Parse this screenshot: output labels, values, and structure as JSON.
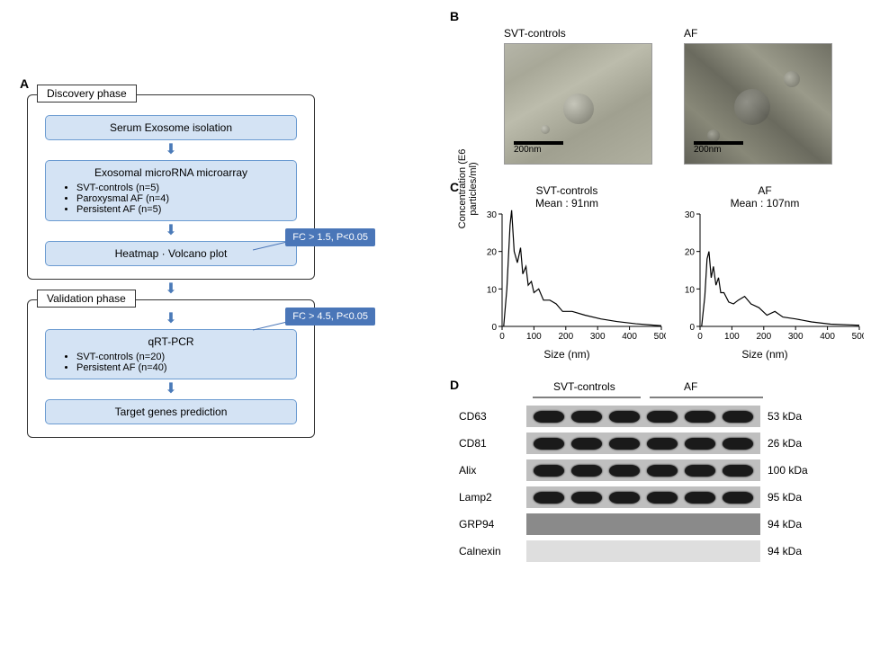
{
  "panels": {
    "A": "A",
    "B": "B",
    "C": "C",
    "D": "D"
  },
  "flowchart": {
    "discovery": {
      "label": "Discovery phase",
      "step1": "Serum Exosome isolation",
      "step2_title": "Exosomal microRNA microarray",
      "step2_items": [
        "SVT-controls (n=5)",
        "Paroxysmal AF (n=4)",
        "Persistent AF (n=5)"
      ],
      "criteria": "FC > 1.5, P<0.05",
      "step3": "Heatmap · Volcano plot"
    },
    "validation": {
      "label": "Validation phase",
      "criteria": "FC > 4.5, P<0.05",
      "step1_title": "qRT-PCR",
      "step1_items": [
        "SVT-controls (n=20)",
        "Persistent AF (n=40)"
      ],
      "step2": "Target genes prediction"
    }
  },
  "panelB": {
    "svt_label": "SVT-controls",
    "af_label": "AF",
    "scale": "200nm"
  },
  "panelC": {
    "ylabel": "Concentration  (E6 particles/ml)",
    "xlabel": "Size (nm)",
    "svt": {
      "title": "SVT-controls",
      "mean": "Mean : 91nm"
    },
    "af": {
      "title": "AF",
      "mean": "Mean : 107nm"
    },
    "xlim": [
      0,
      500
    ],
    "xtick_step": 100,
    "ylim": [
      0,
      30
    ],
    "ytick_step": 10,
    "axis_fontsize": 11,
    "line_color": "#000000",
    "background": "#ffffff",
    "svt_points": [
      [
        5,
        0
      ],
      [
        15,
        10
      ],
      [
        25,
        27
      ],
      [
        30,
        31
      ],
      [
        38,
        20
      ],
      [
        48,
        17
      ],
      [
        58,
        21
      ],
      [
        65,
        14
      ],
      [
        75,
        16
      ],
      [
        82,
        11
      ],
      [
        92,
        12
      ],
      [
        100,
        9
      ],
      [
        115,
        10
      ],
      [
        130,
        7
      ],
      [
        150,
        7
      ],
      [
        170,
        6
      ],
      [
        190,
        4
      ],
      [
        220,
        4
      ],
      [
        260,
        3
      ],
      [
        310,
        2
      ],
      [
        360,
        1.3
      ],
      [
        420,
        0.7
      ],
      [
        480,
        0.3
      ],
      [
        500,
        0.2
      ]
    ],
    "af_points": [
      [
        5,
        0
      ],
      [
        15,
        8
      ],
      [
        22,
        18
      ],
      [
        28,
        20
      ],
      [
        35,
        13
      ],
      [
        42,
        16
      ],
      [
        50,
        11
      ],
      [
        58,
        13
      ],
      [
        65,
        9
      ],
      [
        75,
        9
      ],
      [
        90,
        6.5
      ],
      [
        105,
        6
      ],
      [
        120,
        7
      ],
      [
        140,
        8
      ],
      [
        160,
        6
      ],
      [
        185,
        5
      ],
      [
        210,
        3
      ],
      [
        235,
        4
      ],
      [
        260,
        2.5
      ],
      [
        300,
        2
      ],
      [
        350,
        1.2
      ],
      [
        410,
        0.6
      ],
      [
        470,
        0.4
      ],
      [
        500,
        0.3
      ]
    ]
  },
  "panelD": {
    "group1": "SVT-controls",
    "group2": "AF",
    "rows": [
      {
        "name": "CD63",
        "size": "53 kDa",
        "bands": true
      },
      {
        "name": "CD81",
        "size": "26 kDa",
        "bands": true
      },
      {
        "name": "Alix",
        "size": "100 kDa",
        "bands": true
      },
      {
        "name": "Lamp2",
        "size": "95 kDa",
        "bands": true
      },
      {
        "name": "GRP94",
        "size": "94 kDa",
        "bands": false,
        "bg": "neg"
      },
      {
        "name": "Calnexin",
        "size": "94 kDa",
        "bands": false,
        "bg": "neg2"
      }
    ]
  },
  "colors": {
    "box_fill": "#d4e3f4",
    "box_border": "#6b9bd1",
    "criteria_fill": "#4a76b8",
    "arrow": "#4a7ab8"
  }
}
